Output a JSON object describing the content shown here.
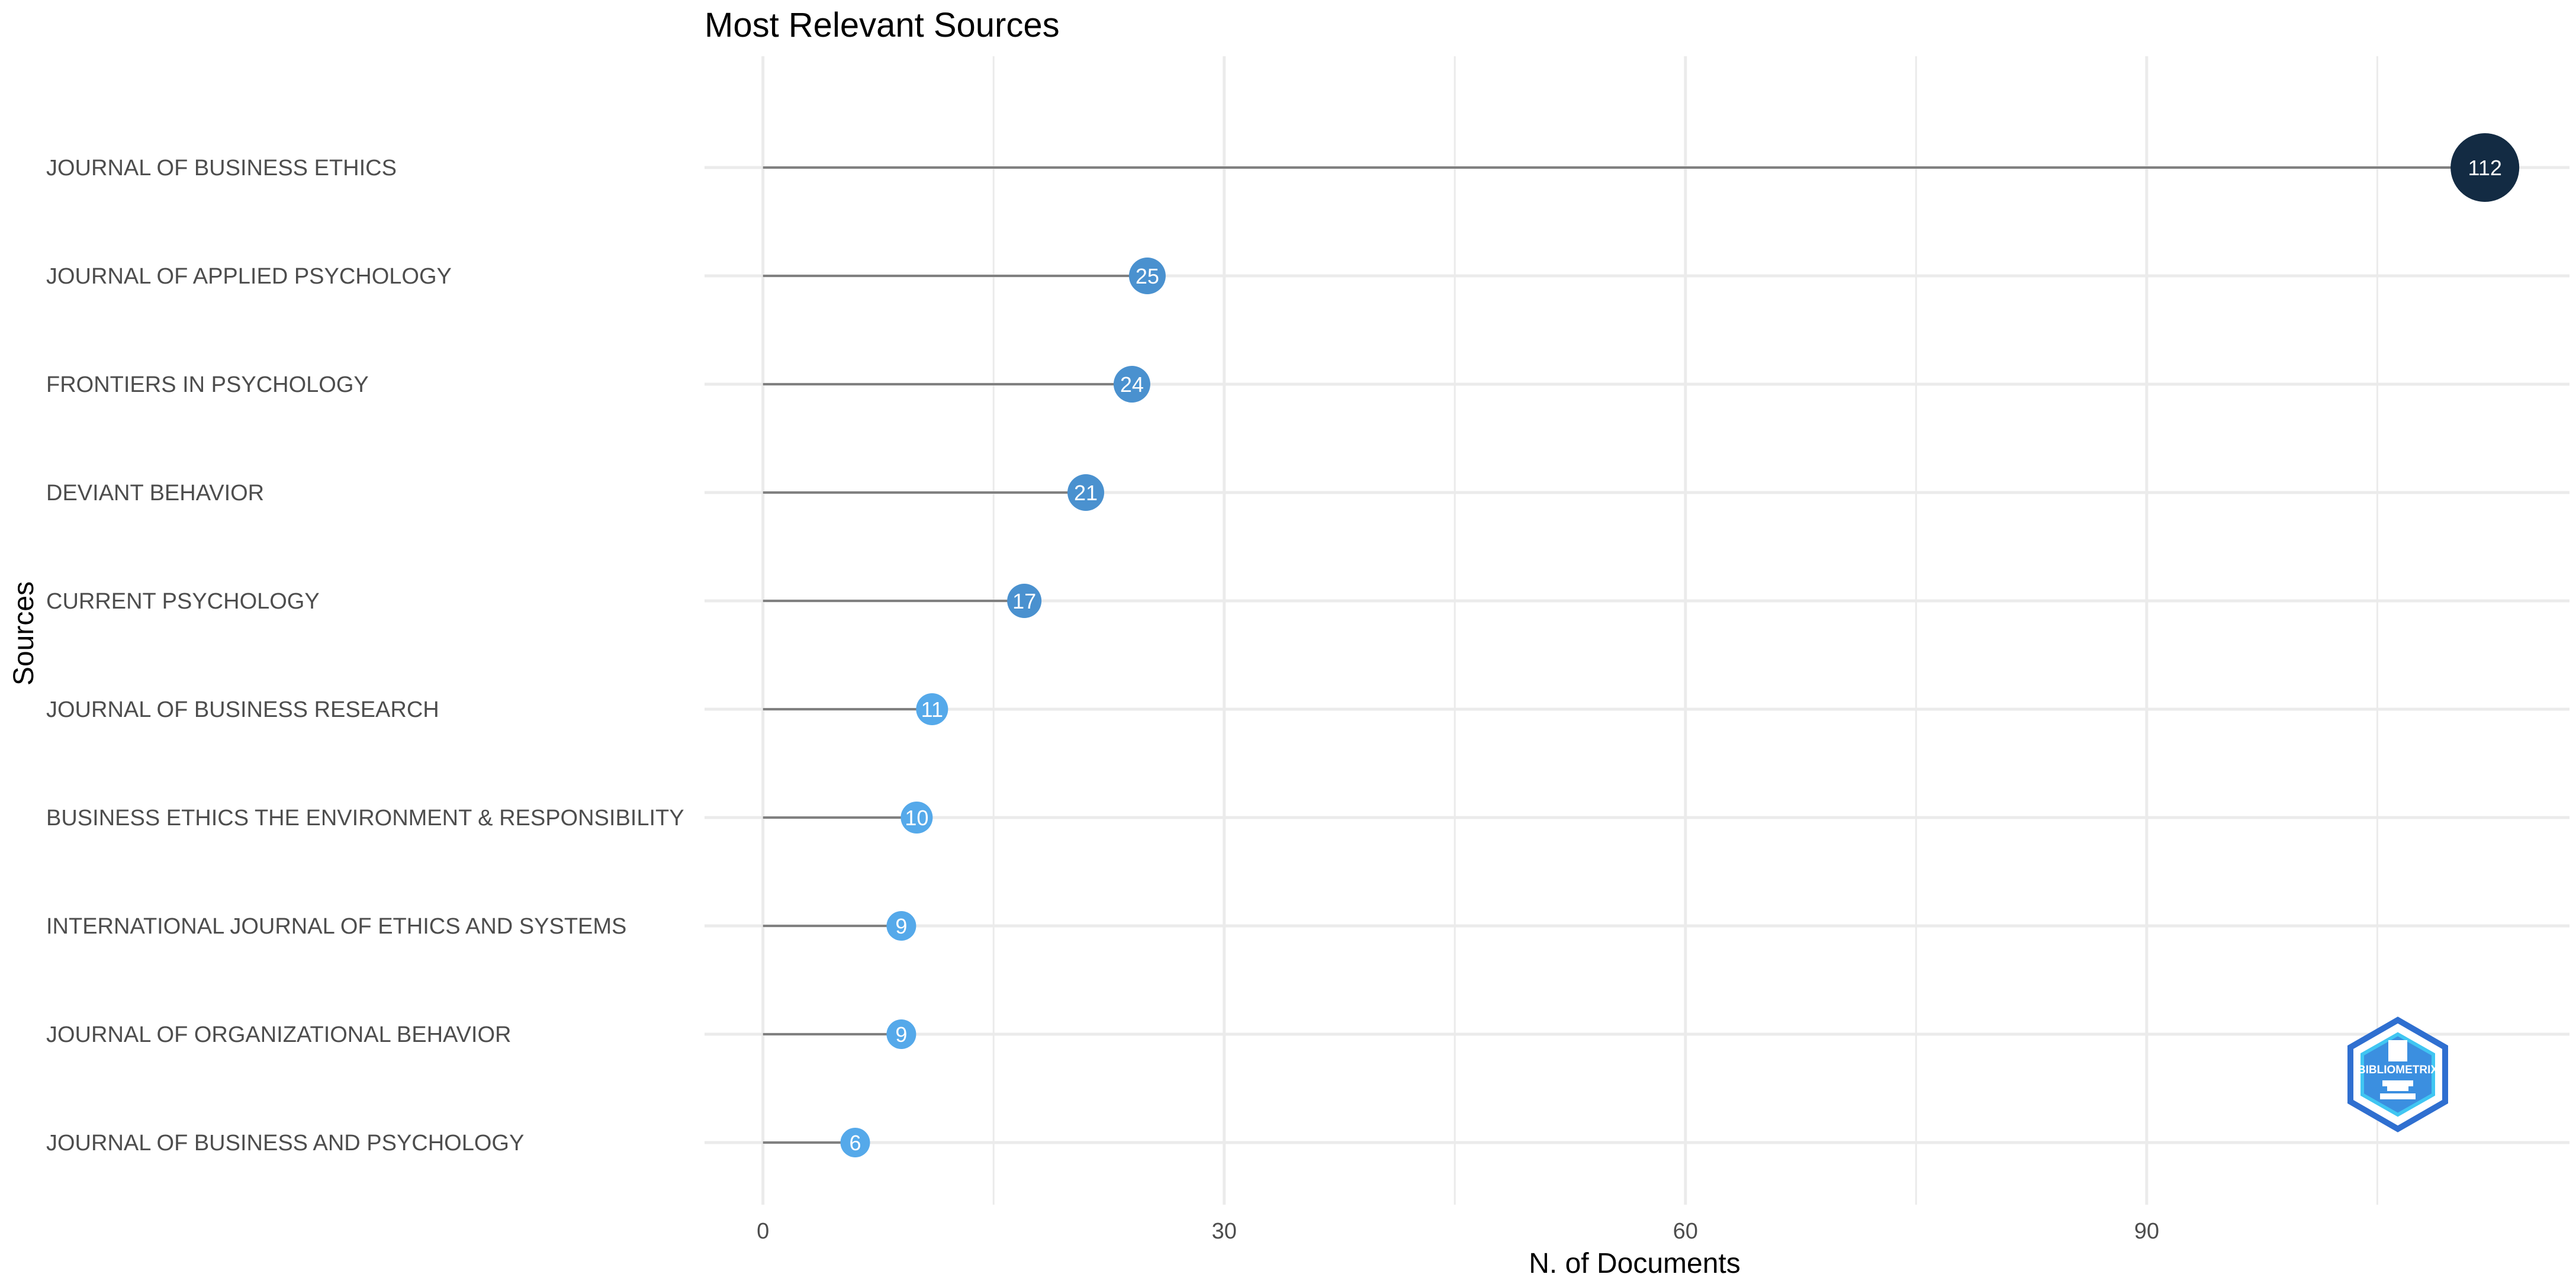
{
  "chart_data": {
    "type": "lollipop",
    "title": "Most Relevant Sources",
    "xlabel": "N. of Documents",
    "ylabel": "Sources",
    "xlim": [
      -3.8,
      117.5
    ],
    "x_ticks": [
      0,
      30,
      60,
      90
    ],
    "grid": true,
    "legend": "none",
    "categories": [
      "JOURNAL OF BUSINESS ETHICS",
      "JOURNAL OF APPLIED PSYCHOLOGY",
      "FRONTIERS IN PSYCHOLOGY",
      "DEVIANT BEHAVIOR",
      "CURRENT PSYCHOLOGY",
      "JOURNAL OF BUSINESS RESEARCH",
      "BUSINESS ETHICS THE ENVIRONMENT & RESPONSIBILITY",
      "INTERNATIONAL JOURNAL OF ETHICS AND SYSTEMS",
      "JOURNAL OF ORGANIZATIONAL BEHAVIOR",
      "JOURNAL OF BUSINESS AND PSYCHOLOGY"
    ],
    "values": [
      112,
      25,
      24,
      21,
      17,
      11,
      10,
      9,
      9,
      6
    ],
    "colors": {
      "max": "#132b43",
      "high": "#4a91cf",
      "low": "#55a9ea",
      "stem": "#808080",
      "grid": "#ebebeb"
    }
  },
  "watermark": {
    "text": "BIBLIOMETRIX",
    "icon": "bibliometrix-logo-icon"
  }
}
